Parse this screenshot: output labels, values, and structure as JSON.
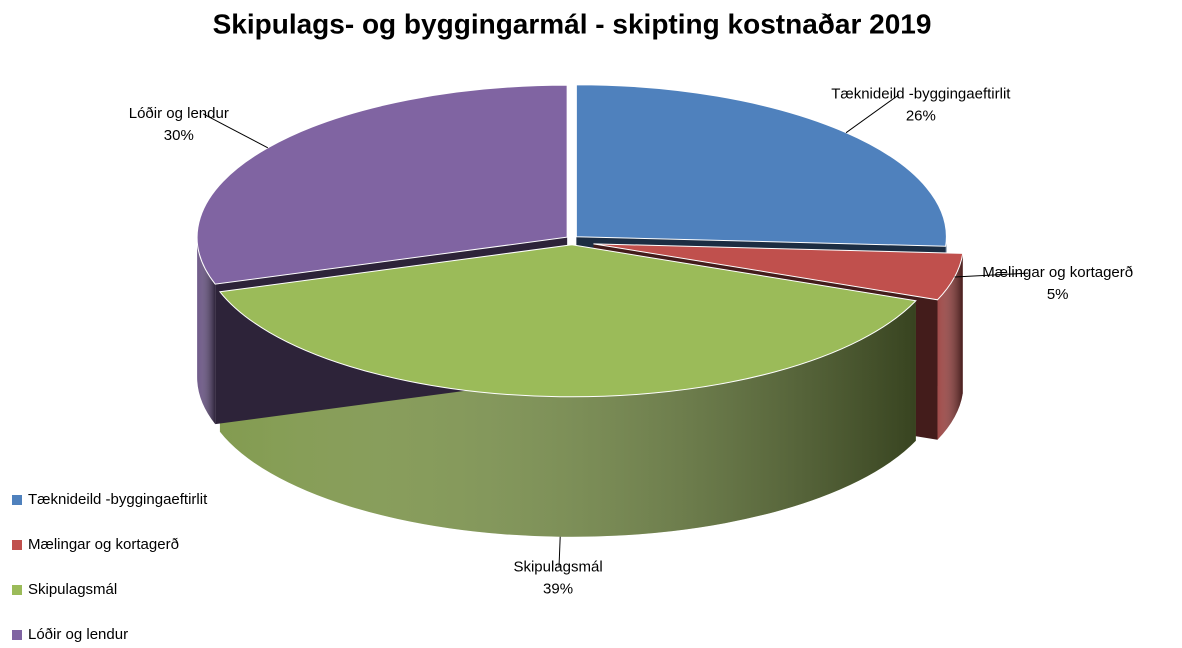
{
  "chart_data": {
    "type": "pie",
    "title": "Skipulags- og byggingarmál - skipting kostnaðar 2019",
    "categories": [
      "Tæknideild -byggingaeftirlit",
      "Mælingar og kortagerð",
      "Skipulagsmál",
      "Lóðir og lendur"
    ],
    "values": [
      26,
      5,
      39,
      30
    ],
    "value_labels": [
      "26%",
      "5%",
      "39%",
      "30%"
    ],
    "colors": [
      "#4f81bd",
      "#c0504d",
      "#9bbb59",
      "#8064a2"
    ],
    "legend": "left"
  }
}
